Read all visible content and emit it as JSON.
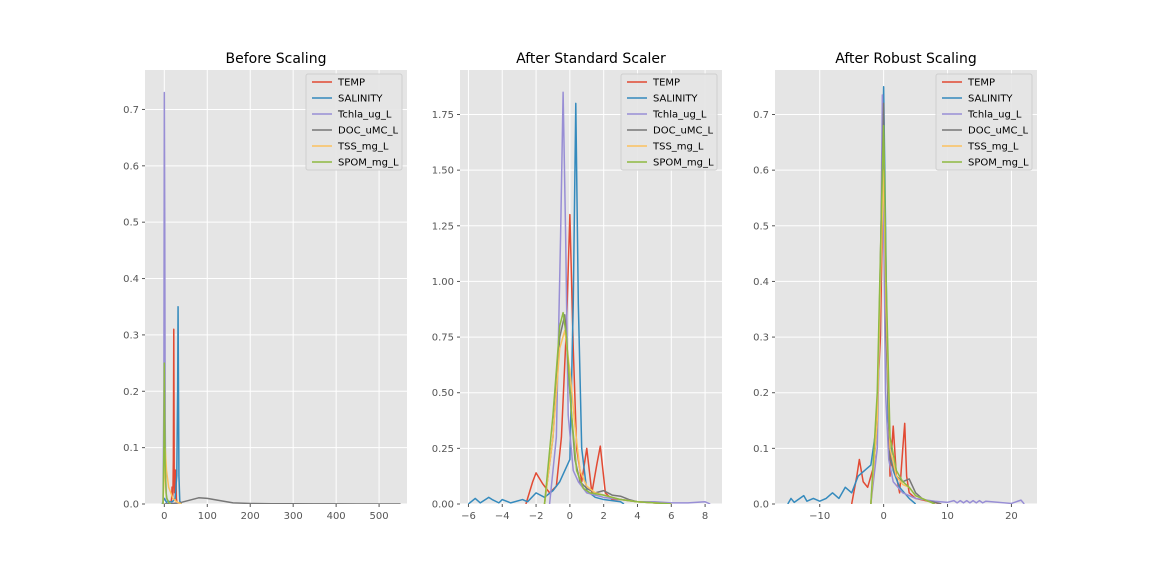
{
  "colors": {
    "TEMP": "#E24A33",
    "SALINITY": "#348ABD",
    "Tchla_ug_L": "#988ED5",
    "DOC_uMC_L": "#777777",
    "TSS_mg_L": "#FBC15E",
    "SPOM_mg_L": "#8EBA42"
  },
  "chart_data": [
    {
      "type": "line",
      "title": "Before Scaling",
      "xlabel": "",
      "ylabel": "",
      "xlim": [
        -45,
        565
      ],
      "ylim": [
        0,
        0.77
      ],
      "xticks": [
        0,
        100,
        200,
        300,
        400,
        500
      ],
      "xtick_labels": [
        "0",
        "100",
        "200",
        "300",
        "400",
        "500"
      ],
      "yticks": [
        0.0,
        0.1,
        0.2,
        0.3,
        0.4,
        0.5,
        0.6,
        0.7
      ],
      "ytick_labels": [
        "0.0",
        "0.1",
        "0.2",
        "0.3",
        "0.4",
        "0.5",
        "0.6",
        "0.7"
      ],
      "grid": true,
      "legend_position": "top-right",
      "series": [
        {
          "name": "TEMP",
          "x": [
            15,
            17,
            18,
            19,
            20,
            21,
            22,
            23,
            24,
            25,
            26,
            27,
            28,
            30
          ],
          "y": [
            0,
            0.01,
            0.03,
            0.01,
            0.02,
            0.08,
            0.31,
            0.05,
            0.02,
            0.06,
            0.03,
            0.06,
            0.01,
            0
          ]
        },
        {
          "name": "SALINITY",
          "x": [
            -5,
            0,
            5,
            10,
            15,
            20,
            25,
            29,
            31,
            32,
            33,
            34,
            36,
            40
          ],
          "y": [
            0,
            0.01,
            0.003,
            0.005,
            0.003,
            0.005,
            0.01,
            0.05,
            0.2,
            0.35,
            0.2,
            0.05,
            0.005,
            0
          ]
        },
        {
          "name": "Tchla_ug_L",
          "x": [
            -3,
            -1,
            0,
            1,
            2,
            3,
            5,
            10,
            20,
            40
          ],
          "y": [
            0,
            0.2,
            0.73,
            0.5,
            0.15,
            0.05,
            0.01,
            0.003,
            0.001,
            0
          ]
        },
        {
          "name": "DOC_uMC_L",
          "x": [
            0,
            20,
            40,
            60,
            80,
            100,
            130,
            160,
            200,
            250,
            300,
            350,
            400,
            450,
            500,
            550
          ],
          "y": [
            0,
            0.001,
            0.003,
            0.007,
            0.011,
            0.01,
            0.006,
            0.002,
            0.001,
            0.0005,
            0.0005,
            0.0003,
            0.0002,
            0.0001,
            0.0001,
            0
          ]
        },
        {
          "name": "TSS_mg_L",
          "x": [
            -3,
            0,
            2,
            5,
            10,
            20,
            30,
            40
          ],
          "y": [
            0,
            0.05,
            0.1,
            0.06,
            0.03,
            0.01,
            0.003,
            0
          ]
        },
        {
          "name": "SPOM_mg_L",
          "x": [
            -3,
            -1,
            0,
            1,
            2,
            4,
            6,
            10,
            15
          ],
          "y": [
            0,
            0.1,
            0.25,
            0.15,
            0.07,
            0.02,
            0.01,
            0.003,
            0
          ]
        }
      ]
    },
    {
      "type": "line",
      "title": "After Standard Scaler",
      "xlabel": "",
      "ylabel": "",
      "xlim": [
        -6.5,
        9
      ],
      "ylim": [
        0,
        1.95
      ],
      "xticks": [
        -6,
        -4,
        -2,
        0,
        2,
        4,
        6,
        8
      ],
      "xtick_labels": [
        "−6",
        "−4",
        "−2",
        "0",
        "2",
        "4",
        "6",
        "8"
      ],
      "yticks": [
        0,
        0.25,
        0.5,
        0.75,
        1.0,
        1.25,
        1.5,
        1.75
      ],
      "ytick_labels": [
        "0.00",
        "0.25",
        "0.50",
        "0.75",
        "1.00",
        "1.25",
        "1.50",
        "1.75"
      ],
      "grid": true,
      "legend_position": "top-right",
      "series": [
        {
          "name": "TEMP",
          "x": [
            -2.6,
            -2.2,
            -2.0,
            -1.6,
            -1.2,
            -0.8,
            -0.5,
            -0.2,
            0.0,
            0.2,
            0.4,
            0.7,
            1.0,
            1.3,
            1.6,
            1.8,
            2.1,
            2.5,
            3.0,
            4,
            5,
            6
          ],
          "y": [
            0,
            0.1,
            0.14,
            0.09,
            0.05,
            0.08,
            0.3,
            0.8,
            1.3,
            0.7,
            0.25,
            0.1,
            0.25,
            0.05,
            0.18,
            0.26,
            0.05,
            0.02,
            0.02,
            0.01,
            0.005,
            0
          ]
        },
        {
          "name": "SALINITY",
          "x": [
            -6.0,
            -5.6,
            -5.3,
            -4.8,
            -4.6,
            -4.2,
            -4.0,
            -3.5,
            -2.8,
            -2.5,
            -2.0,
            -1.5,
            -1.0,
            -0.6,
            -0.3,
            0.0,
            0.2,
            0.35,
            0.5,
            0.7,
            1.0,
            1.5,
            2.0,
            3.0,
            3.2
          ],
          "y": [
            0,
            0.025,
            0.005,
            0.03,
            0.02,
            0.005,
            0.02,
            0.005,
            0.02,
            0.01,
            0.05,
            0.03,
            0.06,
            0.1,
            0.15,
            0.2,
            0.9,
            1.8,
            0.9,
            0.25,
            0.06,
            0.03,
            0.02,
            0.01,
            0
          ]
        },
        {
          "name": "Tchla_ug_L",
          "x": [
            -1.2,
            -0.8,
            -0.55,
            -0.4,
            -0.25,
            -0.1,
            0.2,
            0.5,
            1.0,
            2.0,
            3.0,
            4.0,
            5.0,
            6.0,
            7.0,
            8.0,
            8.3
          ],
          "y": [
            0,
            0.3,
            1.2,
            1.85,
            1.2,
            0.4,
            0.15,
            0.1,
            0.05,
            0.03,
            0.02,
            0.01,
            0.01,
            0.005,
            0.005,
            0.01,
            0
          ]
        },
        {
          "name": "DOC_uMC_L",
          "x": [
            -1.5,
            -1.0,
            -0.6,
            -0.3,
            0.0,
            0.3,
            0.6,
            1.0,
            1.5,
            2.0,
            2.5,
            3.0,
            3.5,
            4.0,
            5.0,
            6.0
          ],
          "y": [
            0,
            0.3,
            0.75,
            0.85,
            0.5,
            0.2,
            0.1,
            0.07,
            0.05,
            0.06,
            0.04,
            0.035,
            0.02,
            0.01,
            0.005,
            0
          ]
        },
        {
          "name": "TSS_mg_L",
          "x": [
            -1.5,
            -1.0,
            -0.6,
            -0.3,
            0.0,
            0.3,
            0.6,
            1.0,
            1.5,
            2.0,
            3.0,
            4.0,
            5.0,
            6.0
          ],
          "y": [
            0,
            0.3,
            0.7,
            0.78,
            0.6,
            0.35,
            0.15,
            0.08,
            0.05,
            0.04,
            0.02,
            0.01,
            0.005,
            0
          ]
        },
        {
          "name": "SPOM_mg_L",
          "x": [
            -1.5,
            -1.0,
            -0.6,
            -0.4,
            -0.2,
            0.1,
            0.4,
            0.8,
            1.2,
            2.0,
            3.0,
            4.0,
            5.0,
            6.0
          ],
          "y": [
            0,
            0.4,
            0.8,
            0.86,
            0.75,
            0.4,
            0.15,
            0.07,
            0.05,
            0.04,
            0.02,
            0.01,
            0.005,
            0
          ]
        }
      ]
    },
    {
      "type": "line",
      "title": "After Robust Scaling",
      "xlabel": "",
      "ylabel": "",
      "xlim": [
        -17,
        24
      ],
      "ylim": [
        0,
        0.78
      ],
      "xticks": [
        -10,
        0,
        10,
        20
      ],
      "xtick_labels": [
        "−10",
        "0",
        "10",
        "20"
      ],
      "yticks": [
        0.0,
        0.1,
        0.2,
        0.3,
        0.4,
        0.5,
        0.6,
        0.7
      ],
      "ytick_labels": [
        "0.0",
        "0.1",
        "0.2",
        "0.3",
        "0.4",
        "0.5",
        "0.6",
        "0.7"
      ],
      "grid": true,
      "legend_position": "top-right",
      "series": [
        {
          "name": "TEMP",
          "x": [
            -5.0,
            -4.2,
            -3.8,
            -3.2,
            -2.5,
            -1.5,
            -0.5,
            0.0,
            0.5,
            1.0,
            1.5,
            2.0,
            2.5,
            3.0,
            3.3,
            3.6,
            4.0,
            5,
            7,
            9
          ],
          "y": [
            0,
            0.05,
            0.08,
            0.04,
            0.03,
            0.07,
            0.3,
            0.65,
            0.3,
            0.05,
            0.14,
            0.05,
            0.02,
            0.1,
            0.145,
            0.05,
            0.02,
            0.01,
            0.005,
            0
          ]
        },
        {
          "name": "SALINITY",
          "x": [
            -15,
            -14.5,
            -14,
            -12.5,
            -12,
            -11,
            -10,
            -9,
            -8,
            -7,
            -6,
            -5,
            -4,
            -2,
            -1,
            -0.3,
            0.0,
            0.3,
            0.7,
            1.5,
            2.5,
            4,
            5
          ],
          "y": [
            0,
            0.01,
            0.003,
            0.015,
            0.005,
            0.01,
            0.005,
            0.01,
            0.02,
            0.01,
            0.03,
            0.02,
            0.05,
            0.07,
            0.15,
            0.5,
            0.75,
            0.5,
            0.15,
            0.06,
            0.03,
            0.01,
            0
          ]
        },
        {
          "name": "Tchla_ug_L",
          "x": [
            -2.0,
            -1.0,
            -0.5,
            -0.2,
            0.0,
            0.3,
            0.8,
            1.5,
            3,
            5,
            8,
            10,
            11,
            11.5,
            12,
            12.5,
            13,
            13.5,
            14,
            14.5,
            15,
            15.5,
            16,
            20,
            21.5,
            22
          ],
          "y": [
            0,
            0.1,
            0.4,
            0.735,
            0.5,
            0.2,
            0.08,
            0.04,
            0.02,
            0.01,
            0.005,
            0.003,
            0.006,
            0.002,
            0.006,
            0.002,
            0.006,
            0.002,
            0.006,
            0.002,
            0.006,
            0.002,
            0.005,
            0.001,
            0.007,
            0
          ]
        },
        {
          "name": "DOC_uMC_L",
          "x": [
            -2.0,
            -1.0,
            -0.4,
            0.0,
            0.4,
            1.0,
            2.0,
            3.0,
            4.0,
            5.0,
            6.0,
            7.0,
            8.0,
            9.0
          ],
          "y": [
            0,
            0.15,
            0.5,
            0.72,
            0.3,
            0.08,
            0.05,
            0.04,
            0.045,
            0.02,
            0.01,
            0.005,
            0.003,
            0
          ]
        },
        {
          "name": "TSS_mg_L",
          "x": [
            -2.0,
            -1.0,
            -0.4,
            0.0,
            0.4,
            1.0,
            2.0,
            3.0,
            4.0,
            5.0,
            6.0,
            7.0,
            8.0
          ],
          "y": [
            0,
            0.15,
            0.45,
            0.6,
            0.35,
            0.1,
            0.05,
            0.035,
            0.03,
            0.015,
            0.01,
            0.005,
            0
          ]
        },
        {
          "name": "SPOM_mg_L",
          "x": [
            -2.0,
            -1.0,
            -0.4,
            0.0,
            0.4,
            1.0,
            2.0,
            3.0,
            4.0,
            5.0,
            6.0,
            7.0,
            8.0
          ],
          "y": [
            0,
            0.2,
            0.5,
            0.68,
            0.4,
            0.12,
            0.06,
            0.04,
            0.03,
            0.015,
            0.01,
            0.005,
            0
          ]
        }
      ]
    }
  ]
}
